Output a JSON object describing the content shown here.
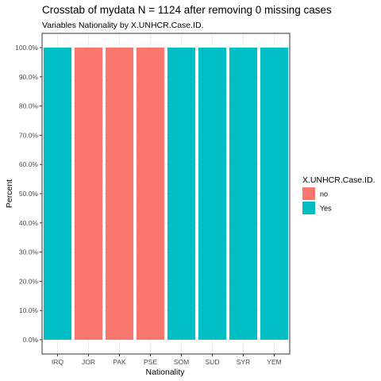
{
  "chart_data": {
    "type": "bar",
    "title": "Crosstab of mydata N = 1124 after removing 0 missing cases",
    "subtitle": "Variables Nationality by X.UNHCR.Case.ID.",
    "xlabel": "Nationality",
    "ylabel": "Percent",
    "categories": [
      "IRQ",
      "JOR",
      "PAK",
      "PSE",
      "SOM",
      "SUD",
      "SYR",
      "YEM"
    ],
    "series": [
      {
        "name": "no",
        "color": "#F8766D",
        "values": [
          0,
          100,
          100,
          100,
          0,
          0,
          0,
          0
        ]
      },
      {
        "name": "Yes",
        "color": "#00BFC4",
        "values": [
          100,
          0,
          0,
          0,
          100,
          100,
          100,
          100
        ]
      }
    ],
    "ylim": [
      0,
      100
    ],
    "yticks": [
      0,
      10,
      20,
      30,
      40,
      50,
      60,
      70,
      80,
      90,
      100
    ],
    "ytick_labels": [
      "0.0%",
      "10.0%",
      "20.0%",
      "30.0%",
      "40.0%",
      "50.0%",
      "60.0%",
      "70.0%",
      "80.0%",
      "90.0%",
      "100.0%"
    ],
    "stacked": true,
    "legend": {
      "title": "X.UNHCR.Case.ID.",
      "position": "right"
    },
    "grid": true
  }
}
